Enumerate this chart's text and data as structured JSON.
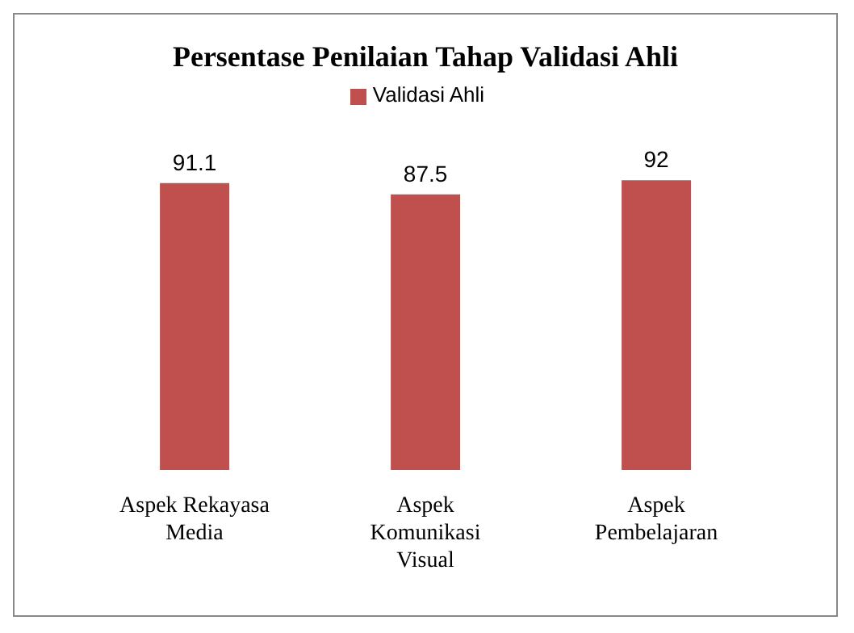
{
  "chart_data": {
    "type": "bar",
    "title": "Persentase Penilaian Tahap Validasi Ahli",
    "categories": [
      "Aspek Rekayasa Media",
      "Aspek Komunikasi Visual",
      "Aspek Pembelajaran"
    ],
    "series": [
      {
        "name": "Validasi Ahli",
        "color": "#c0504d",
        "values": [
          91.1,
          87.5,
          92
        ]
      }
    ],
    "data_labels": true,
    "legend": "top",
    "grid": false,
    "tick_labels": "x"
  }
}
